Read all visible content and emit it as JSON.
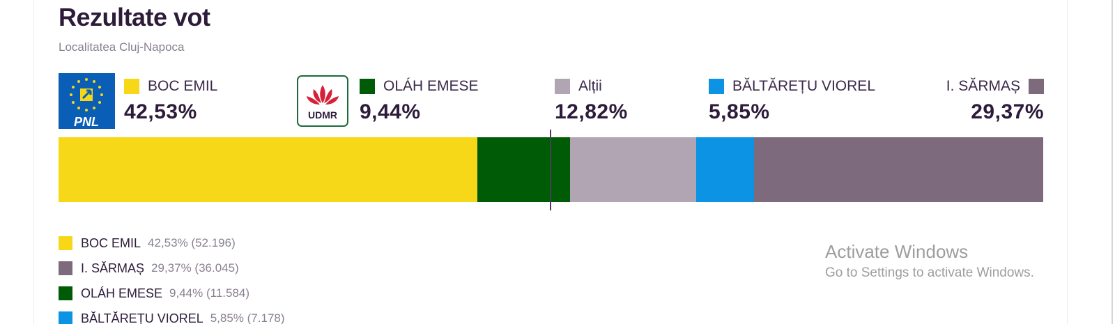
{
  "header": {
    "title": "Rezultate vot",
    "subtitle": "Localitatea Cluj-Napoca"
  },
  "logos": {
    "pnl": "PNL",
    "udmr": "UDMR"
  },
  "colors": {
    "boc": "#f6d819",
    "olah": "#005b06",
    "altii": "#b1a5b3",
    "baltaretu": "#0c93e3",
    "sarmas": "#7d6a7d",
    "pnl_blue": "#0a5eb5",
    "udmr_red": "#d7213a",
    "udmr_green": "#1c6b3a"
  },
  "candidates": {
    "boc": {
      "name": "BOC EMIL",
      "pct": "42,53%"
    },
    "olah": {
      "name": "OLÁH EMESE",
      "pct": "9,44%"
    },
    "altii": {
      "name": "Alții",
      "pct": "12,82%"
    },
    "baltaretu": {
      "name": "BĂLTĂREȚU VIOREL",
      "pct": "5,85%"
    },
    "sarmas": {
      "name": "I. SĂRMAȘ",
      "pct": "29,37%"
    }
  },
  "chart_data": {
    "type": "bar",
    "orientation": "horizontal-stacked",
    "categories": [
      "BOC EMIL",
      "OLÁH EMESE",
      "Alții",
      "BĂLTĂREȚU VIOREL",
      "I. SĂRMAȘ"
    ],
    "values": [
      42.53,
      9.44,
      12.82,
      5.85,
      29.37
    ],
    "colors": [
      "#f6d819",
      "#005b06",
      "#b1a5b3",
      "#0c93e3",
      "#7d6a7d"
    ],
    "threshold_percent": 50,
    "xlim": [
      0,
      100
    ]
  },
  "legend": [
    {
      "name": "BOC EMIL",
      "value": "42,53% (52.196)",
      "color": "#f6d819"
    },
    {
      "name": "I. SĂRMAȘ",
      "value": "29,37% (36.045)",
      "color": "#7d6a7d"
    },
    {
      "name": "OLÁH EMESE",
      "value": "9,44% (11.584)",
      "color": "#005b06"
    },
    {
      "name": "BĂLTĂREȚU VIOREL",
      "value": "5,85% (7.178)",
      "color": "#0c93e3"
    }
  ],
  "watermark": {
    "line1": "Activate Windows",
    "line2": "Go to Settings to activate Windows."
  }
}
